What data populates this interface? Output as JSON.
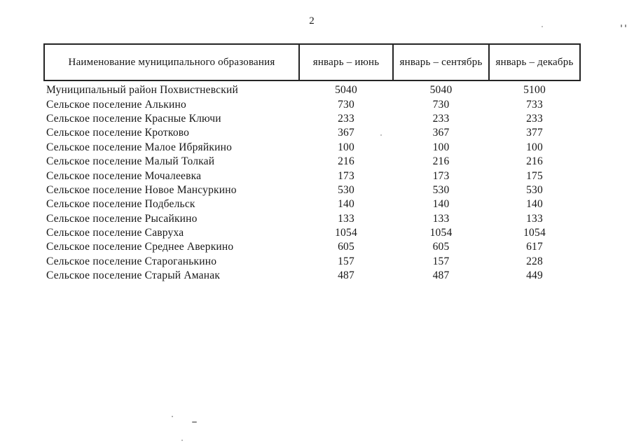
{
  "page": {
    "number": "2"
  },
  "table": {
    "columns": [
      "Наименование муниципального образования",
      "январь – июнь",
      "январь – сентябрь",
      "январь – декабрь"
    ],
    "rows": [
      {
        "name": "Муниципальный район Похвистневский",
        "values": [
          "5040",
          "5040",
          "5100"
        ]
      },
      {
        "name": "Сельское поселение Алькино",
        "values": [
          "730",
          "730",
          "733"
        ]
      },
      {
        "name": "Сельское поселение Красные Ключи",
        "values": [
          "233",
          "233",
          "233"
        ]
      },
      {
        "name": "Сельское поселение Кротково",
        "values": [
          "367",
          "367",
          "377"
        ]
      },
      {
        "name": "Сельское поселение Малое Ибряйкино",
        "values": [
          "100",
          "100",
          "100"
        ]
      },
      {
        "name": "Сельское поселение Малый Толкай",
        "values": [
          "216",
          "216",
          "216"
        ]
      },
      {
        "name": "Сельское поселение Мочалеевка",
        "values": [
          "173",
          "173",
          "175"
        ]
      },
      {
        "name": "Сельское поселение Новое Мансуркино",
        "values": [
          "530",
          "530",
          "530"
        ]
      },
      {
        "name": "Сельское поселение Подбельск",
        "values": [
          "140",
          "140",
          "140"
        ]
      },
      {
        "name": "Сельское поселение Рысайкино",
        "values": [
          "133",
          "133",
          "133"
        ]
      },
      {
        "name": "Сельское поселение Савруха",
        "values": [
          "1054",
          "1054",
          "1054"
        ]
      },
      {
        "name": "Сельское поселение Среднее Аверкино",
        "values": [
          "605",
          "605",
          "617"
        ]
      },
      {
        "name": "Сельское поселение Староганькино",
        "values": [
          "157",
          "157",
          "228"
        ]
      },
      {
        "name": "Сельское поселение Старый Аманак",
        "values": [
          "487",
          "487",
          "449"
        ]
      }
    ]
  }
}
